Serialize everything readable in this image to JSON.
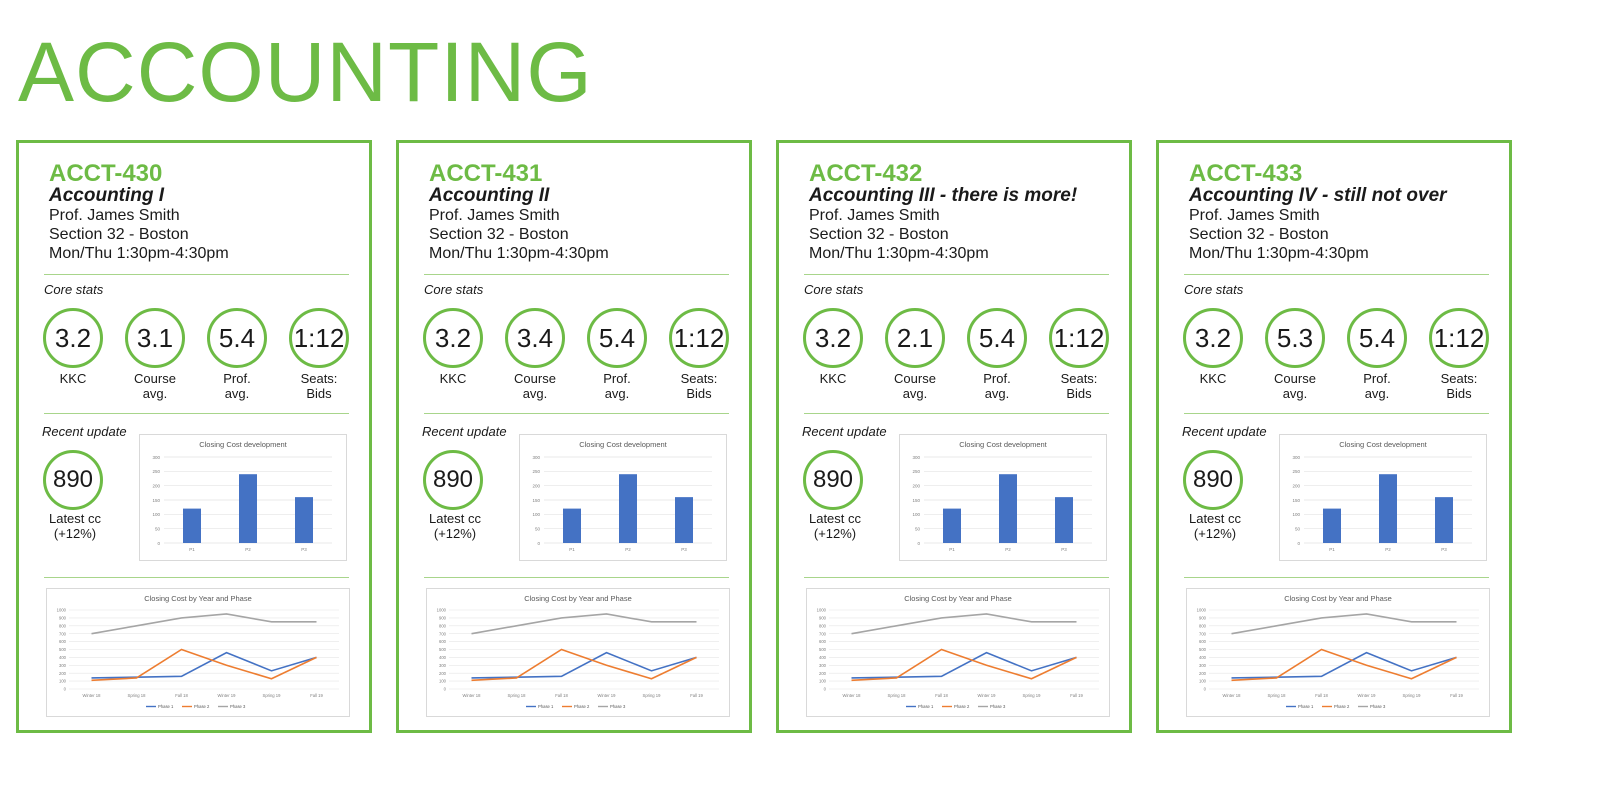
{
  "page": {
    "title": "ACCOUNTING"
  },
  "colors": {
    "accent": "#6dbb45",
    "code_text": "#6dbb45",
    "phase1": "#4472c4",
    "phase2": "#ed7d31",
    "phase3": "#a5a5a5",
    "bar": "#4472c4"
  },
  "labels": {
    "core_stats": "Core stats",
    "recent_update": "Recent update",
    "latest_cc_line1": "Latest cc",
    "latest_cc_line2": "(+12%)",
    "kkc": "KKC",
    "course_avg_1": "Course",
    "course_avg_2": "avg.",
    "prof_avg_1": "Prof.",
    "prof_avg_2": "avg.",
    "seats_1": "Seats:",
    "seats_2": "Bids"
  },
  "cards": [
    {
      "code": "ACCT-430",
      "name": "Accounting I",
      "professor": "Prof. James Smith",
      "section": "Section 32 - Boston",
      "schedule": "Mon/Thu 1:30pm-4:30pm",
      "stats": {
        "kkc": "3.2",
        "course_avg": "3.1",
        "prof_avg": "5.4",
        "seats_bids": "1:12"
      },
      "latest_cc": "890"
    },
    {
      "code": "ACCT-431",
      "name": "Accounting II",
      "professor": "Prof. James Smith",
      "section": "Section 32 - Boston",
      "schedule": "Mon/Thu 1:30pm-4:30pm",
      "stats": {
        "kkc": "3.2",
        "course_avg": "3.4",
        "prof_avg": "5.4",
        "seats_bids": "1:12"
      },
      "latest_cc": "890"
    },
    {
      "code": "ACCT-432",
      "name": "Accounting III - there is more!",
      "professor": "Prof. James Smith",
      "section": "Section 32 - Boston",
      "schedule": "Mon/Thu 1:30pm-4:30pm",
      "stats": {
        "kkc": "3.2",
        "course_avg": "2.1",
        "prof_avg": "5.4",
        "seats_bids": "1:12"
      },
      "latest_cc": "890"
    },
    {
      "code": "ACCT-433",
      "name": "Accounting IV - still not over",
      "professor": "Prof. James Smith",
      "section": "Section 32 - Boston",
      "schedule": "Mon/Thu 1:30pm-4:30pm",
      "stats": {
        "kkc": "3.2",
        "course_avg": "5.3",
        "prof_avg": "5.4",
        "seats_bids": "1:12"
      },
      "latest_cc": "890"
    }
  ],
  "chart_data": [
    {
      "type": "bar",
      "title": "Closing Cost development",
      "categories": [
        "P1",
        "P2",
        "P3"
      ],
      "values": [
        120,
        240,
        160
      ],
      "ylim": [
        0,
        300
      ],
      "yticks": [
        0,
        50,
        100,
        150,
        200,
        250,
        300
      ],
      "grid": true,
      "legend": "none"
    },
    {
      "type": "line",
      "title": "Closing Cost by Year and Phase",
      "categories": [
        "Winter 18",
        "Spring 18",
        "Fall 18",
        "Winter 19",
        "Spring 19",
        "Fall 19"
      ],
      "series": [
        {
          "name": "Phase 1",
          "values": [
            140,
            150,
            160,
            460,
            230,
            400
          ]
        },
        {
          "name": "Phase 2",
          "values": [
            110,
            140,
            500,
            300,
            130,
            400
          ]
        },
        {
          "name": "Phase 3",
          "values": [
            700,
            800,
            900,
            950,
            850,
            850
          ]
        }
      ],
      "ylim": [
        0,
        1000
      ],
      "yticks": [
        0,
        100,
        200,
        300,
        400,
        500,
        600,
        700,
        800,
        900,
        1000
      ],
      "grid": true,
      "legend": "bottom"
    }
  ]
}
